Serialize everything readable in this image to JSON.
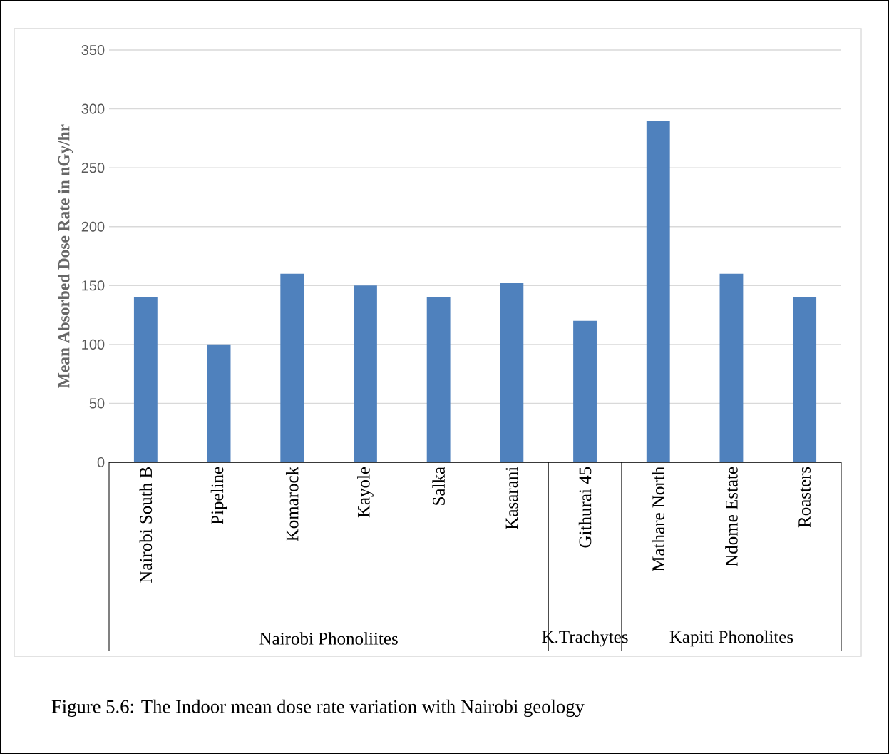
{
  "chart_data": {
    "type": "bar",
    "ylabel": "Mean Absorbed Dose Rate in nGy/hr",
    "categories": [
      "Nairobi South B",
      "Pipeline",
      "Komarock",
      "Kayole",
      "Salka",
      "Kasarani",
      "Githurai 45",
      "Mathare North",
      "Ndome Estate",
      "Roasters"
    ],
    "values": [
      140,
      100,
      160,
      150,
      140,
      152,
      120,
      290,
      160,
      140
    ],
    "color": "#4f81bd",
    "ylim": [
      0,
      350
    ],
    "yticks": [
      0,
      50,
      100,
      150,
      200,
      250,
      300,
      350
    ],
    "grid": "y",
    "annotations": [
      "Nairobi Phonoliites",
      "K.Trachytes",
      "Kapiti Phonolites",
      "Figure 5.6: The Indoor mean dose rate variation with Nairobi geology"
    ]
  }
}
